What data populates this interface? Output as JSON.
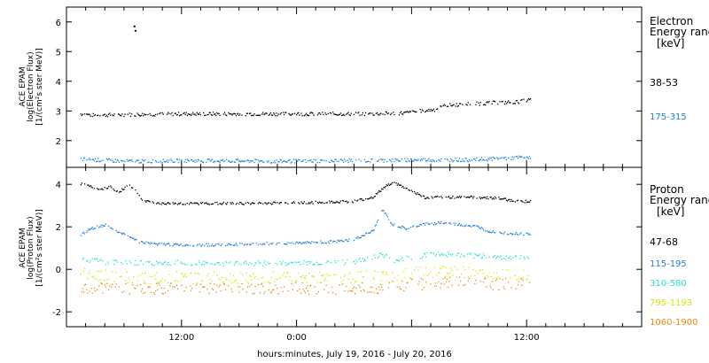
{
  "chart_data": [
    {
      "type": "scatter",
      "panel": "electron",
      "ylabel_lines": [
        "ACE EPAM",
        "log(Electron Flux)",
        "[1/(cm²s ster MeV)]"
      ],
      "yticks": [
        "2",
        "3",
        "4",
        "5",
        "6"
      ],
      "ylim": [
        1.1,
        6.5
      ],
      "legend_title_lines": [
        "Electron",
        "Energy ranges",
        "[keV]"
      ],
      "series": [
        {
          "name": "38-53",
          "color": "#000000",
          "x": [
            -10.5,
            -9.0,
            -7.0,
            -4.0,
            0.0,
            4.0,
            8.0,
            12.0,
            16.0,
            20.0,
            22.0,
            23.2,
            24.0,
            25.0,
            26.5,
            27.5,
            29.0,
            31.0,
            33.0,
            35.0,
            36.5
          ],
          "y": [
            2.9,
            2.85,
            2.87,
            2.88,
            2.9,
            2.9,
            2.9,
            2.9,
            2.9,
            2.9,
            2.92,
            2.93,
            2.95,
            3.0,
            3.05,
            3.18,
            3.22,
            3.25,
            3.28,
            3.3,
            3.38
          ]
        },
        {
          "name": "175-315",
          "color": "#1f7fd6",
          "x": [
            -10.5,
            -8.0,
            -5.0,
            0.0,
            5.0,
            10.0,
            15.0,
            20.0,
            25.0,
            30.0,
            36.5
          ],
          "y": [
            1.38,
            1.33,
            1.3,
            1.32,
            1.32,
            1.3,
            1.32,
            1.33,
            1.35,
            1.35,
            1.45
          ]
        },
        {
          "name": "",
          "color": "#000000",
          "x": [
            -4.9,
            -4.8
          ],
          "y": [
            5.85,
            5.7
          ]
        }
      ]
    },
    {
      "type": "scatter",
      "panel": "proton",
      "ylabel_lines": [
        "ACE EPAM",
        "log(Proton Flux)",
        "[1/(cm²s ster MeV)]"
      ],
      "yticks": [
        "-2",
        "0",
        "2",
        "4"
      ],
      "ylim": [
        -2.7,
        4.8
      ],
      "legend_title_lines": [
        "Proton",
        "Energy ranges",
        "[keV]"
      ],
      "series": [
        {
          "name": "47-68",
          "color": "#000000",
          "x": [
            -10.5,
            -9.5,
            -8.5,
            -7.5,
            -6.5,
            -5.5,
            -4.8,
            -4.0,
            -2.0,
            2.0,
            6.0,
            10.0,
            14.0,
            18.0,
            20.0,
            21.0,
            22.0,
            23.0,
            24.0,
            25.5,
            27.0,
            30.0,
            33.0,
            35.0,
            36.5
          ],
          "y": [
            4.0,
            3.95,
            3.7,
            3.9,
            3.6,
            4.05,
            3.7,
            3.2,
            3.1,
            3.1,
            3.1,
            3.12,
            3.15,
            3.2,
            3.4,
            3.8,
            4.1,
            3.9,
            3.7,
            3.35,
            3.4,
            3.4,
            3.35,
            3.2,
            3.2
          ]
        },
        {
          "name": "115-195",
          "color": "#1f7fd6",
          "x": [
            -10.5,
            -9.5,
            -8.0,
            -7.0,
            -5.5,
            -4.5,
            -3.0,
            0.0,
            4.0,
            8.0,
            12.0,
            16.0,
            18.0,
            20.0,
            21.0,
            22.0,
            23.5,
            25.0,
            27.0,
            29.0,
            31.0,
            32.0,
            34.0,
            36.5
          ],
          "y": [
            1.6,
            1.9,
            2.1,
            1.8,
            1.6,
            1.3,
            1.2,
            1.15,
            1.15,
            1.2,
            1.25,
            1.3,
            1.4,
            1.8,
            2.8,
            2.1,
            1.9,
            2.1,
            2.2,
            2.1,
            2.0,
            1.8,
            1.7,
            1.65
          ]
        },
        {
          "name": "310-580",
          "color": "#2ee0d0",
          "x": [
            -10.5,
            -8.0,
            -5.0,
            0.0,
            5.0,
            10.0,
            15.0,
            18.0,
            21.0,
            22.0,
            24.0,
            26.0,
            28.0,
            30.0,
            33.0,
            36.5
          ],
          "y": [
            0.5,
            0.35,
            0.3,
            0.3,
            0.28,
            0.3,
            0.3,
            0.35,
            0.7,
            0.4,
            0.55,
            0.7,
            0.7,
            0.65,
            0.6,
            0.55
          ]
        },
        {
          "name": "795-1193",
          "color": "#d8e800",
          "x": [
            -10.5,
            -5.0,
            0.0,
            5.0,
            10.0,
            15.0,
            20.0,
            22.0,
            25.0,
            28.0,
            31.0,
            34.0,
            36.5
          ],
          "y": [
            -0.2,
            -0.4,
            -0.4,
            -0.4,
            -0.4,
            -0.4,
            -0.35,
            -0.3,
            -0.15,
            -0.1,
            -0.2,
            -0.25,
            -0.25
          ]
        },
        {
          "name": "1060-1900",
          "color": "#e88a10",
          "x": [
            -10.5,
            -5.0,
            0.0,
            5.0,
            10.0,
            15.0,
            20.0,
            22.0,
            25.0,
            28.0,
            31.0,
            34.0,
            36.5
          ],
          "y": [
            -0.9,
            -0.9,
            -0.9,
            -0.9,
            -0.9,
            -0.9,
            -0.9,
            -0.8,
            -0.7,
            -0.6,
            -0.7,
            -0.7,
            -0.7
          ]
        }
      ]
    }
  ],
  "x_axis": {
    "range_hours": [
      -12,
      48
    ],
    "labeled_ticks": [
      {
        "x": 0,
        "label": "12:00"
      },
      {
        "x": 12,
        "label": "0:00"
      },
      {
        "x": 36,
        "label": "12:00"
      }
    ],
    "xlabel": "hours:minutes, July 19, 2016 - July 20, 2016"
  }
}
